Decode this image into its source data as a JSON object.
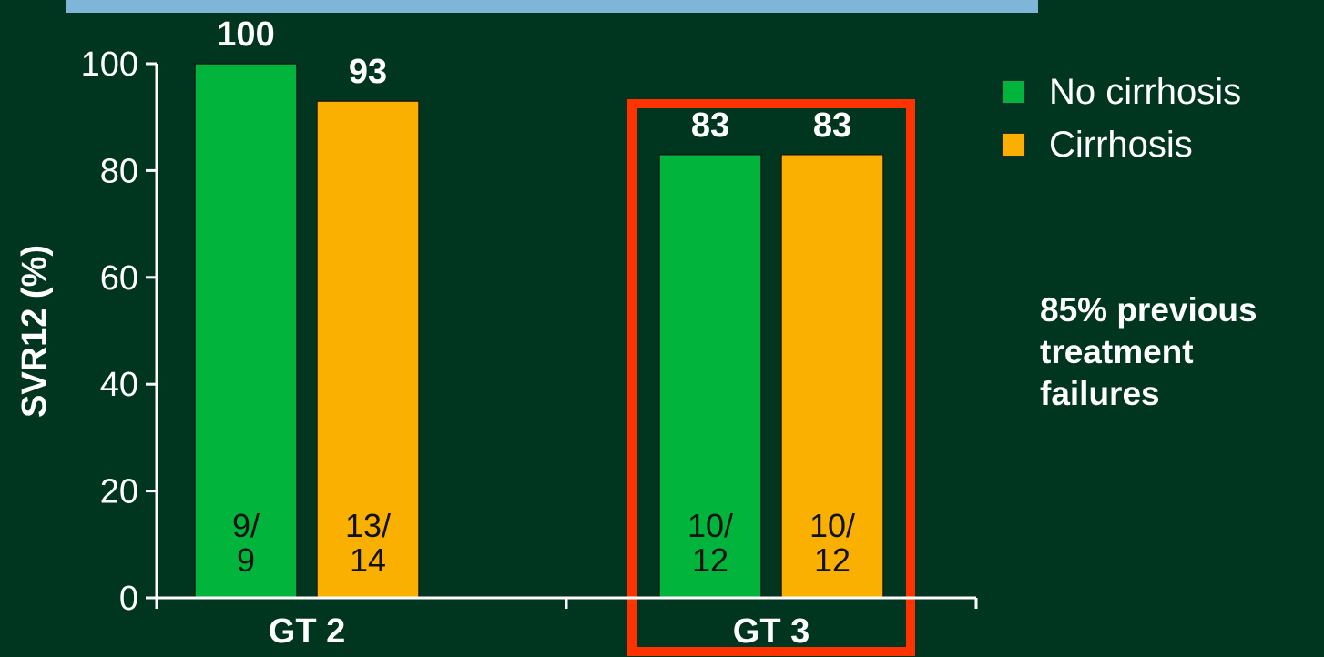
{
  "chart_data": {
    "type": "bar",
    "categories": [
      "GT 2",
      "GT 3"
    ],
    "series": [
      {
        "name": "No cirrhosis",
        "color": "#00b43c",
        "values": [
          100,
          83
        ],
        "value_labels": [
          "100",
          "83"
        ],
        "n_labels": [
          [
            "9/",
            "9"
          ],
          [
            "10/",
            "12"
          ]
        ]
      },
      {
        "name": "Cirrhosis",
        "color": "#f9b000",
        "values": [
          93,
          83
        ],
        "value_labels": [
          "93",
          "83"
        ],
        "n_labels": [
          [
            "13/",
            "14"
          ],
          [
            "10/",
            "12"
          ]
        ]
      }
    ],
    "ylabel": "SVR12 (%)",
    "xlabel": "",
    "ylim": [
      0,
      100
    ],
    "yticks": [
      "0",
      "20",
      "40",
      "60",
      "80",
      "100"
    ],
    "legend_position": "right",
    "highlight": {
      "category": "GT 3",
      "color": "#ff3300"
    }
  },
  "annotation": {
    "lines": [
      "85% previous",
      "treatment",
      "failures"
    ]
  },
  "colors": {
    "background": "#003620",
    "top_bar": "#7fb6d8",
    "axis": "#ffffff"
  }
}
